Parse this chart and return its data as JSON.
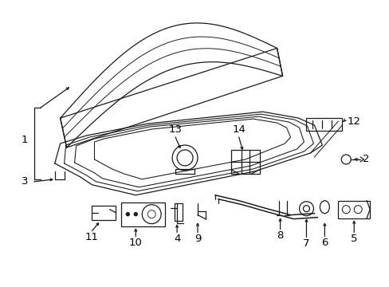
{
  "bg_color": "#ffffff",
  "line_color": "#1a1a1a",
  "label_color": "#000000",
  "label_fontsize": 9.5
}
